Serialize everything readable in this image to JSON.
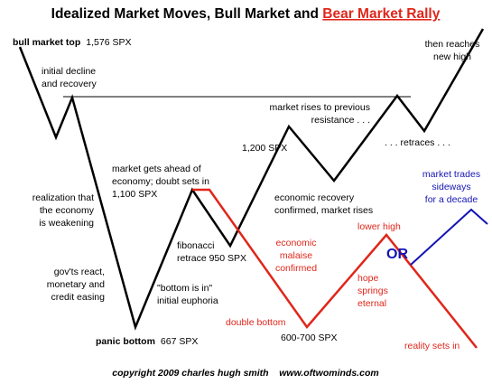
{
  "title": {
    "main": "Idealized Market Moves, Bull Market and ",
    "highlight": "Bear Market Rally"
  },
  "labels": {
    "bull_top": "bull market top",
    "bull_top_value": "1,576 SPX",
    "initial_decline_1": "initial decline",
    "initial_decline_2": "and recovery",
    "realization_1": "realization that",
    "realization_2": "the economy",
    "realization_3": "is weakening",
    "govts_1": "gov'ts react,",
    "govts_2": "monetary and",
    "govts_3": "credit easing",
    "panic_bottom": "panic bottom",
    "panic_bottom_value": "667 SPX",
    "bottom_in_1": "\"bottom is in\"",
    "bottom_in_2": "initial euphoria",
    "ahead_1": "market gets ahead of",
    "ahead_2": "economy; doubt sets in",
    "ahead_value": "1,100 SPX",
    "fib_1": "fibonacci",
    "fib_2": "retrace 950 SPX",
    "spx1200": "1,200 SPX",
    "recovery_1": "economic recovery",
    "recovery_2": "confirmed, market rises",
    "rises_1": "market rises to previous",
    "rises_2": "resistance . . .",
    "retraces": ". . . retraces . . .",
    "new_high_1": "then reaches",
    "new_high_2": "new high",
    "malaise_1": "economic",
    "malaise_2": "malaise",
    "malaise_3": "confirmed",
    "double_bottom": "double bottom",
    "double_bottom_value": "600-700 SPX",
    "hope_1": "hope",
    "hope_2": "springs",
    "hope_3": "eternal",
    "lower_high": "lower high",
    "reality": "reality sets in",
    "or": "OR",
    "sideways_1": "market trades",
    "sideways_2": "sideways",
    "sideways_3": "for a decade"
  },
  "footer": {
    "copyright": "copyright 2009 charles hugh smith    www.oftwominds.com"
  },
  "colors": {
    "bull_path": "#000000",
    "bear_path": "#e0261b",
    "sideways_path": "#1414b4"
  }
}
